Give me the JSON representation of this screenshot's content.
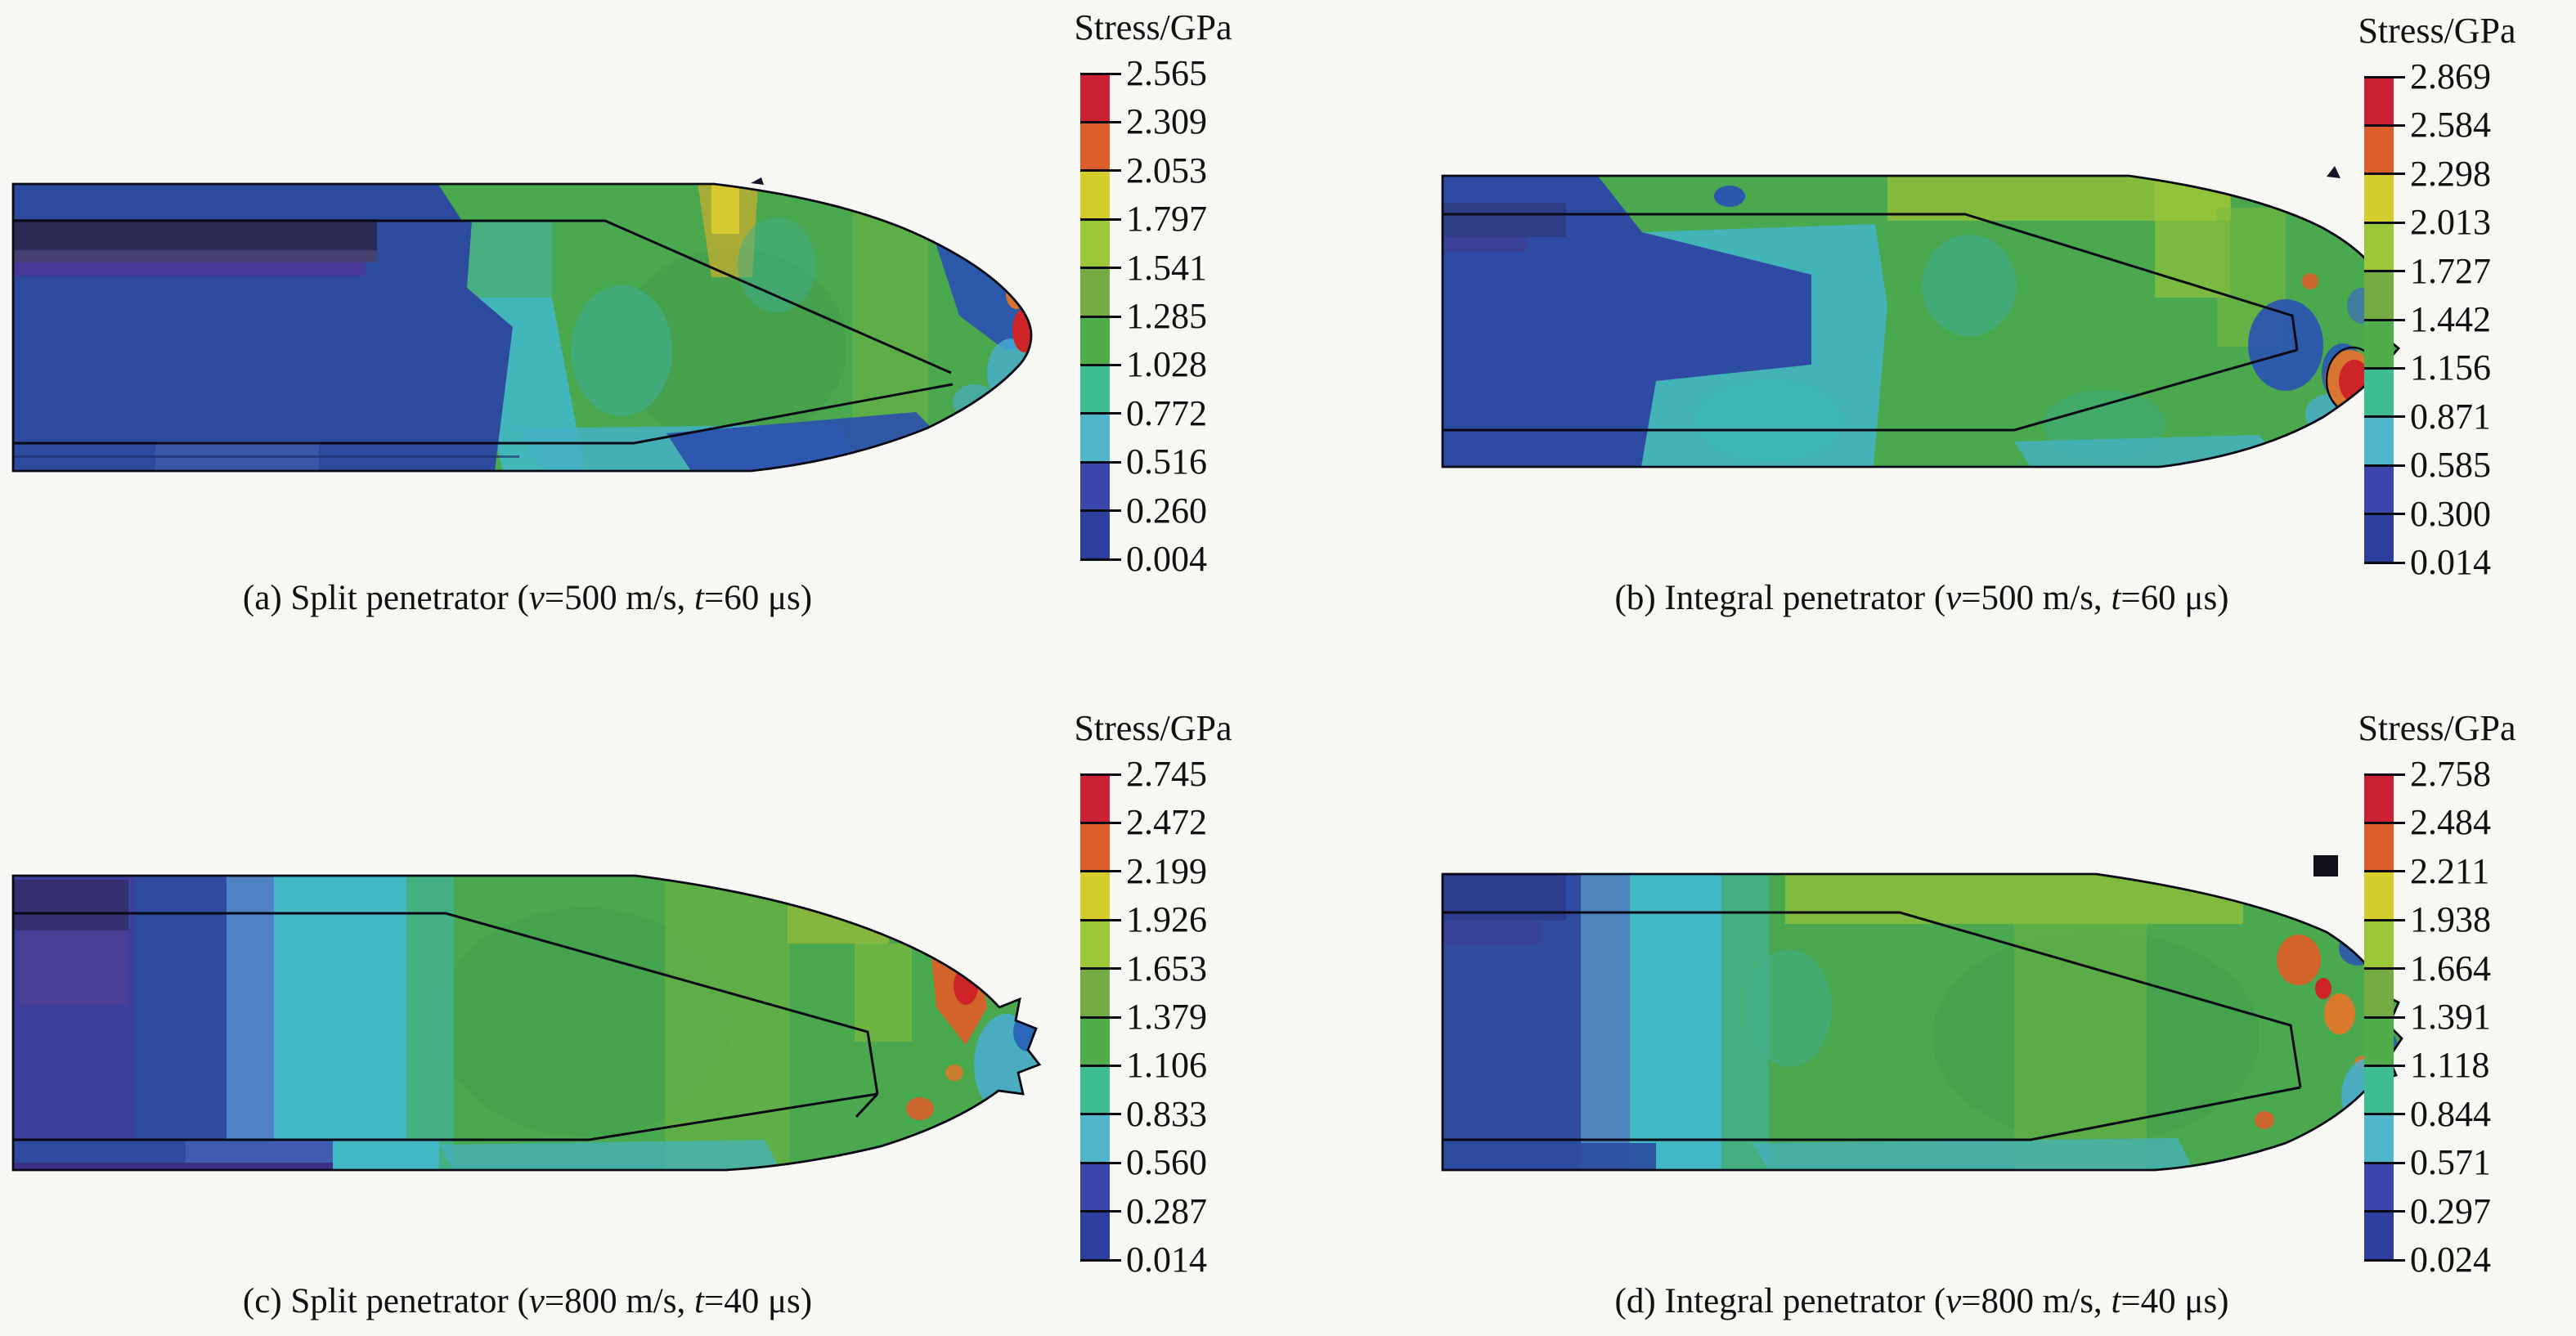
{
  "figure": {
    "colorbar_title": "Stress/GPa",
    "colorbar_colors": [
      "#cb2132",
      "#dc5f2b",
      "#d5cd2c",
      "#9cc838",
      "#74ab43",
      "#4fae4a",
      "#3fbd92",
      "#52b6cb",
      "#3a46aa",
      "#2c3f9e"
    ],
    "contour_palette": {
      "low_stress_blue": "#2e4ba0",
      "dark_band_navy": "#2b2a55",
      "indigo_band": "#46399a",
      "transition_cyan": "#41b8c4",
      "mid_stress_green": "#4aa84f",
      "high_stress_orange": "#d95f28",
      "peak_stress_red": "#ce2428"
    },
    "panels": [
      {
        "id": "a",
        "caption_parts": [
          "(a) Split penetrator (",
          "v",
          "=500 m/s, ",
          "t",
          "=60 μs)"
        ],
        "ticks": [
          "2.565",
          "2.309",
          "2.053",
          "1.797",
          "1.541",
          "1.285",
          "1.028",
          "0.772",
          "0.516",
          "0.260",
          "0.004"
        ]
      },
      {
        "id": "b",
        "caption_parts": [
          "(b) Integral penetrator (",
          "v",
          "=500 m/s, ",
          "t",
          "=60 μs)"
        ],
        "ticks": [
          "2.869",
          "2.584",
          "2.298",
          "2.013",
          "1.727",
          "1.442",
          "1.156",
          "0.871",
          "0.585",
          "0.300",
          "0.014"
        ]
      },
      {
        "id": "c",
        "caption_parts": [
          "(c) Split penetrator (",
          "v",
          "=800 m/s, ",
          "t",
          "=40 μs)"
        ],
        "ticks": [
          "2.745",
          "2.472",
          "2.199",
          "1.926",
          "1.653",
          "1.379",
          "1.106",
          "0.833",
          "0.560",
          "0.287",
          "0.014"
        ]
      },
      {
        "id": "d",
        "caption_parts": [
          "(d) Integral penetrator (",
          "v",
          "=800 m/s, ",
          "t",
          "=40 μs)"
        ],
        "ticks": [
          "2.758",
          "2.484",
          "2.211",
          "1.938",
          "1.664",
          "1.391",
          "1.118",
          "0.844",
          "0.571",
          "0.297",
          "0.024"
        ]
      }
    ]
  },
  "chart_data": [
    {
      "type": "heatmap",
      "title": "(a) Split penetrator (v=500 m/s, t=60 μs)",
      "legend_title": "Stress/GPa",
      "unit": "GPa",
      "legend_ticks": [
        2.565,
        2.309,
        2.053,
        1.797,
        1.541,
        1.285,
        1.028,
        0.772,
        0.516,
        0.26,
        0.004
      ],
      "value_range": [
        0.004,
        2.565
      ],
      "colormap_top_to_bottom": [
        "#cb2132",
        "#dc5f2b",
        "#d5cd2c",
        "#9cc838",
        "#74ab43",
        "#4fae4a",
        "#3fbd92",
        "#52b6cb",
        "#3a46aa",
        "#2c3f9e"
      ],
      "legend_position": "right",
      "description": "Stress contour of split penetrator: rear shank low stress (blue, ~0.0-0.5 GPa) with dark navy band, cyan transition band, nose body moderate stress (green, ~1.0-1.5 GPa), blue patch on upper nose, peak stress red/orange spot (~2.3-2.6 GPa) at blunt tip."
    },
    {
      "type": "heatmap",
      "title": "(b) Integral penetrator (v=500 m/s, t=60 μs)",
      "legend_title": "Stress/GPa",
      "unit": "GPa",
      "legend_ticks": [
        2.869,
        2.584,
        2.298,
        2.013,
        1.727,
        1.442,
        1.156,
        0.871,
        0.585,
        0.3,
        0.014
      ],
      "value_range": [
        0.014,
        2.869
      ],
      "colormap_top_to_bottom": [
        "#cb2132",
        "#dc5f2b",
        "#d5cd2c",
        "#9cc838",
        "#74ab43",
        "#4fae4a",
        "#3fbd92",
        "#52b6cb",
        "#3a46aa",
        "#2c3f9e"
      ],
      "legend_position": "right",
      "description": "Stress contour of integral penetrator: narrow blue low-stress rear, cyan transition, dominant green body (~1.2-1.7 GPa), blue spots near core vertex, red peak spot (~2.6-2.9 GPa) at nose tip."
    },
    {
      "type": "heatmap",
      "title": "(c) Split penetrator (v=800 m/s, t=40 μs)",
      "legend_title": "Stress/GPa",
      "unit": "GPa",
      "legend_ticks": [
        2.745,
        2.472,
        2.199,
        1.926,
        1.653,
        1.379,
        1.106,
        0.833,
        0.56,
        0.287,
        0.014
      ],
      "value_range": [
        0.014,
        2.745
      ],
      "colormap_top_to_bottom": [
        "#cb2132",
        "#dc5f2b",
        "#d5cd2c",
        "#9cc838",
        "#74ab43",
        "#4fae4a",
        "#3fbd92",
        "#52b6cb",
        "#3a46aa",
        "#2c3f9e"
      ],
      "legend_position": "right",
      "description": "Stress contour of split penetrator at 800 m/s: indigo/blue rear bands, blue-cyan-green gradient along shank, large green body, orange/red high-stress streaks (~2.2-2.7 GPa) ahead of core vertex, eroded ragged tip with cyan/blue fragments."
    },
    {
      "type": "heatmap",
      "title": "(d) Integral penetrator (v=800 m/s, t=40 μs)",
      "legend_title": "Stress/GPa",
      "unit": "GPa",
      "legend_ticks": [
        2.758,
        2.484,
        2.211,
        1.938,
        1.664,
        1.391,
        1.118,
        0.844,
        0.571,
        0.297,
        0.024
      ],
      "value_range": [
        0.024,
        2.758
      ],
      "colormap_top_to_bottom": [
        "#cb2132",
        "#dc5f2b",
        "#d5cd2c",
        "#9cc838",
        "#74ab43",
        "#4fae4a",
        "#3fbd92",
        "#52b6cb",
        "#3a46aa",
        "#2c3f9e"
      ],
      "legend_position": "right",
      "description": "Stress contour of integral penetrator at 800 m/s: short blue rear, cyan transition, broad green body with yellow-green upper band, orange/red concentrations (~2.2-2.8 GPa) near eroded nose tip, black debris tab above nose."
    }
  ]
}
